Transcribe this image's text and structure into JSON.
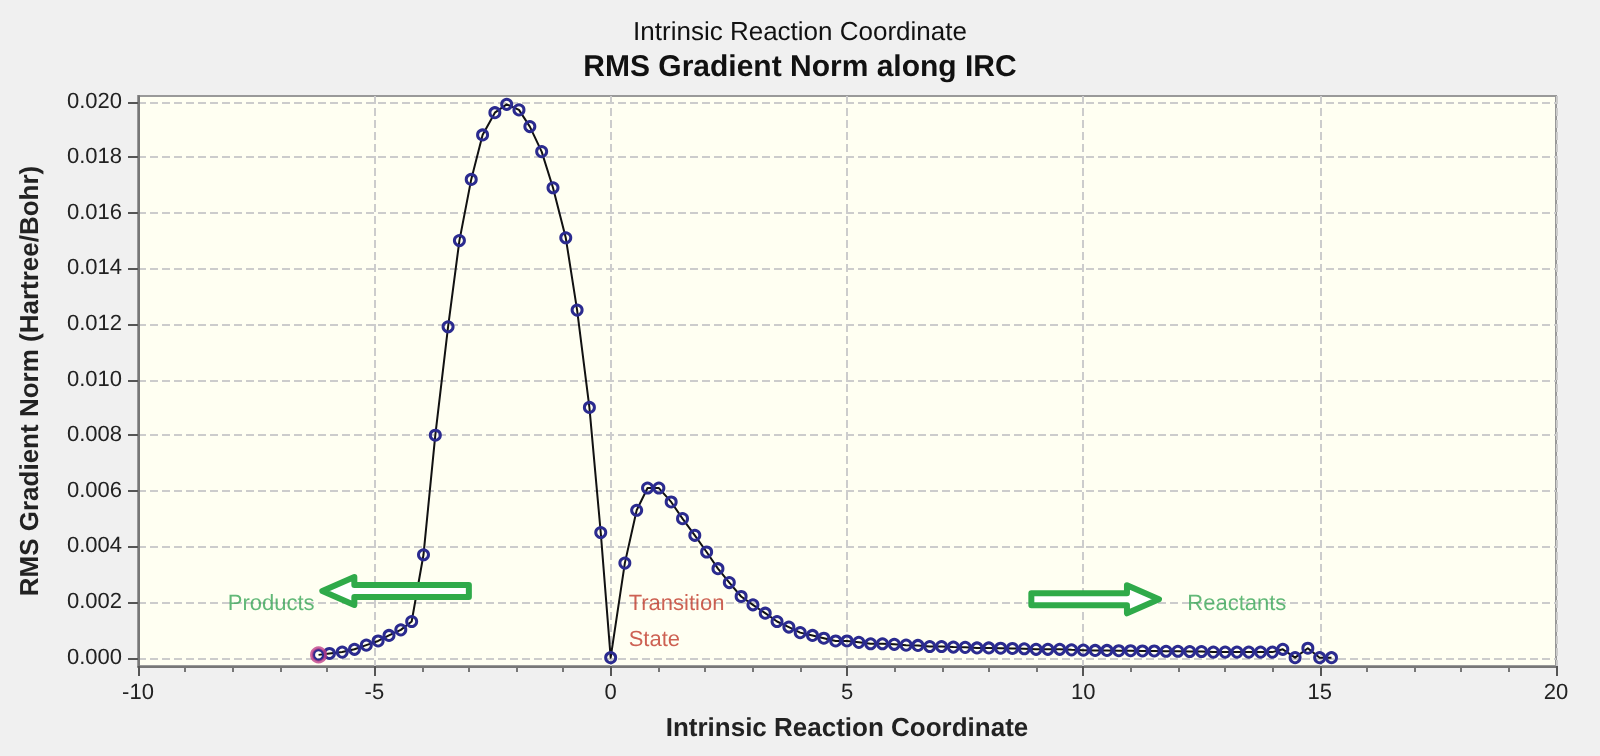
{
  "chart_data": {
    "type": "line",
    "title": "RMS Gradient Norm along IRC",
    "subtitle": "Intrinsic Reaction Coordinate",
    "xlabel": "Intrinsic Reaction Coordinate",
    "ylabel": "RMS Gradient Norm (Hartree/Bohr)",
    "series": [
      {
        "color": "#2b2b8f",
        "x": [
          -6.18,
          -5.95,
          -5.68,
          -5.42,
          -5.17,
          -4.92,
          -4.69,
          -4.44,
          -4.21,
          -3.96,
          -3.71,
          -3.44,
          -3.2,
          -2.95,
          -2.71,
          -2.45,
          -2.2,
          -1.94,
          -1.71,
          -1.46,
          -1.22,
          -0.95,
          -0.71,
          -0.45,
          -0.21,
          0,
          0.3,
          0.55,
          0.78,
          1.02,
          1.28,
          1.52,
          1.78,
          2.03,
          2.27,
          2.51,
          2.76,
          3.01,
          3.27,
          3.52,
          3.77,
          4.01,
          4.27,
          4.51,
          4.76,
          5.0,
          5.25,
          5.5,
          5.75,
          6.0,
          6.25,
          6.5,
          6.75,
          7.0,
          7.25,
          7.5,
          7.75,
          8.0,
          8.25,
          8.5,
          8.75,
          9.0,
          9.25,
          9.5,
          9.75,
          10.0,
          10.25,
          10.5,
          10.75,
          11.0,
          11.25,
          11.5,
          11.75,
          12.0,
          12.25,
          12.5,
          12.75,
          13.0,
          13.25,
          13.5,
          13.75,
          14.0,
          14.22,
          14.48,
          14.75,
          15.0,
          15.25
        ],
        "values": [
          0.0001,
          0.00015,
          0.0002,
          0.0003,
          0.00045,
          0.0006,
          0.0008,
          0.001,
          0.0013,
          0.0037,
          0.008,
          0.0119,
          0.015,
          0.0172,
          0.0188,
          0.0196,
          0.0199,
          0.0197,
          0.0191,
          0.0182,
          0.0169,
          0.0151,
          0.0125,
          0.009,
          0.0045,
          0,
          0.0034,
          0.0053,
          0.0061,
          0.0061,
          0.0056,
          0.005,
          0.0044,
          0.0038,
          0.0032,
          0.0027,
          0.0022,
          0.0019,
          0.0016,
          0.0013,
          0.0011,
          0.0009,
          0.0008,
          0.0007,
          0.0006,
          0.0006,
          0.00055,
          0.0005,
          0.0005,
          0.00048,
          0.00045,
          0.00044,
          0.0004,
          0.0004,
          0.00038,
          0.00037,
          0.00035,
          0.00035,
          0.00034,
          0.00033,
          0.00032,
          0.0003,
          0.0003,
          0.0003,
          0.00028,
          0.00027,
          0.00026,
          0.00026,
          0.00025,
          0.00025,
          0.00024,
          0.00024,
          0.00023,
          0.00023,
          0.00022,
          0.00022,
          0.0002,
          0.0002,
          0.0002,
          0.0002,
          0.0002,
          0.0002,
          0.0003,
          0,
          0.00034,
          0,
          0
        ]
      },
      {
        "type": "scatter",
        "color": "#c0408a",
        "x": [
          -6.18
        ],
        "values": [
          0.0001
        ]
      }
    ],
    "xlim": [
      -10,
      20
    ],
    "xticks": [
      -10,
      -5,
      0,
      5,
      10,
      15,
      20
    ],
    "ylim": [
      -0.0003,
      0.0202
    ],
    "yticks": [
      {
        "value": 0,
        "label": "0.000"
      },
      {
        "value": 0.002,
        "label": "0.002"
      },
      {
        "value": 0.004,
        "label": "0.004"
      },
      {
        "value": 0.006,
        "label": "0.006"
      },
      {
        "value": 0.008,
        "label": "0.008"
      },
      {
        "value": 0.01,
        "label": "0.010"
      },
      {
        "value": 0.012,
        "label": "0.012"
      },
      {
        "value": 0.014,
        "label": "0.014"
      },
      {
        "value": 0.016,
        "label": "0.016"
      },
      {
        "value": 0.018,
        "label": "0.018"
      },
      {
        "value": 0.02,
        "label": "0.020"
      }
    ],
    "grid": true,
    "marker": "circle",
    "line_style": "solid",
    "annotations": [
      "Products",
      {
        "text": "Transition State",
        "x": 0,
        "y": 0
      },
      "Reactants"
    ]
  }
}
